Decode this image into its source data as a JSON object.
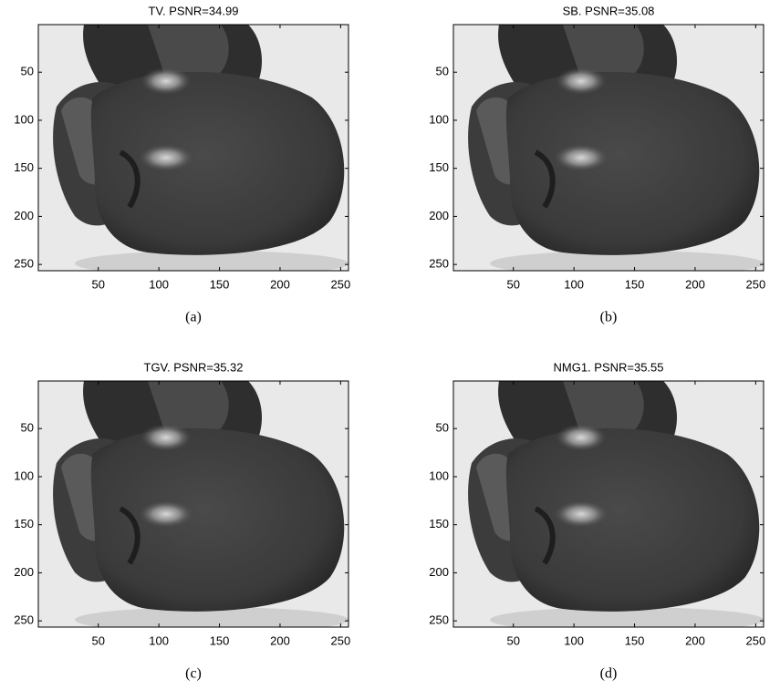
{
  "chart_data": [
    {
      "type": "image",
      "title": "TV. PSNR=34.99",
      "caption": "(a)",
      "xlim": [
        0.5,
        256.5
      ],
      "ylim": [
        0.5,
        256.5
      ],
      "y_inverted": true,
      "xticks": [
        50,
        100,
        150,
        200,
        250
      ],
      "yticks": [
        50,
        100,
        150,
        200,
        250
      ]
    },
    {
      "type": "image",
      "title": "SB. PSNR=35.08",
      "caption": "(b)",
      "xlim": [
        0.5,
        256.5
      ],
      "ylim": [
        0.5,
        256.5
      ],
      "y_inverted": true,
      "xticks": [
        50,
        100,
        150,
        200,
        250
      ],
      "yticks": [
        50,
        100,
        150,
        200,
        250
      ]
    },
    {
      "type": "image",
      "title": "TGV. PSNR=35.32",
      "caption": "(c)",
      "xlim": [
        0.5,
        256.5
      ],
      "ylim": [
        0.5,
        256.5
      ],
      "y_inverted": true,
      "xticks": [
        50,
        100,
        150,
        200,
        250
      ],
      "yticks": [
        50,
        100,
        150,
        200,
        250
      ]
    },
    {
      "type": "image",
      "title": "NMG1. PSNR=35.55",
      "caption": "(d)",
      "xlim": [
        0.5,
        256.5
      ],
      "ylim": [
        0.5,
        256.5
      ],
      "y_inverted": true,
      "xticks": [
        50,
        100,
        150,
        200,
        250
      ],
      "yticks": [
        50,
        100,
        150,
        200,
        250
      ]
    }
  ]
}
